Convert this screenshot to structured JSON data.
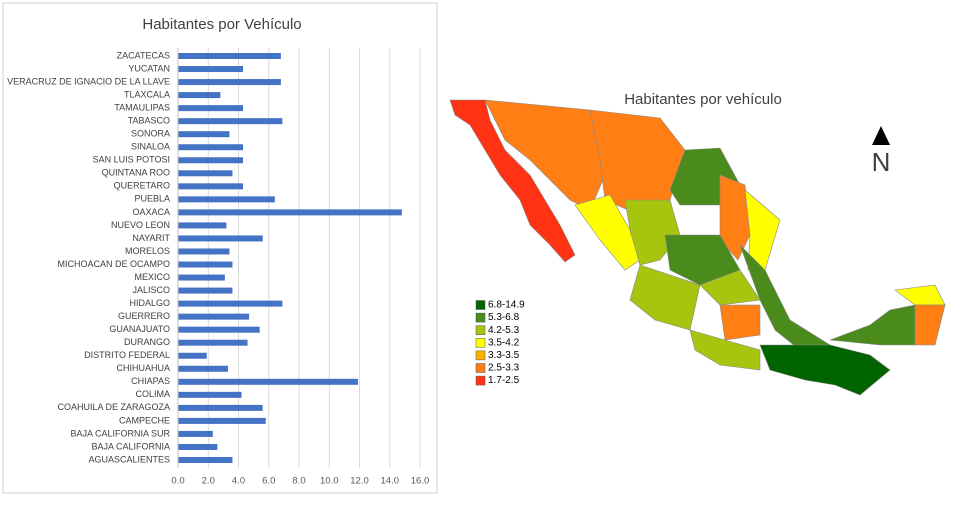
{
  "chart_data": {
    "type": "bar",
    "orientation": "horizontal",
    "title": "Habitantes por Vehículo",
    "categories": [
      "AGUASCALIENTES",
      "BAJA CALIFORNIA",
      "BAJA CALIFORNIA SUR",
      "CAMPECHE",
      "COAHUILA DE ZARAGOZA",
      "COLIMA",
      "CHIAPAS",
      "CHIHUAHUA",
      "DISTRITO FEDERAL",
      "DURANGO",
      "GUANAJUATO",
      "GUERRERO",
      "HIDALGO",
      "JALISCO",
      "MEXICO",
      "MICHOACAN DE OCAMPO",
      "MORELOS",
      "NAYARIT",
      "NUEVO LEON",
      "OAXACA",
      "PUEBLA",
      "QUERETARO",
      "QUINTANA ROO",
      "SAN LUIS POTOSI",
      "SINALOA",
      "SONORA",
      "TABASCO",
      "TAMAULIPAS",
      "TLAXCALA",
      "VERACRUZ DE IGNACIO DE LA LLAVE",
      "YUCATAN",
      "ZACATECAS"
    ],
    "values": [
      3.6,
      2.6,
      2.3,
      5.8,
      5.6,
      4.2,
      11.9,
      3.3,
      1.9,
      4.6,
      5.4,
      4.7,
      6.9,
      3.6,
      3.1,
      3.6,
      3.4,
      5.6,
      3.2,
      14.8,
      6.4,
      4.3,
      3.6,
      4.3,
      4.3,
      3.4,
      6.9,
      4.3,
      2.8,
      6.8,
      4.3,
      6.8
    ],
    "color": "#4472c4",
    "xlim": [
      0,
      16
    ],
    "xticks": [
      {
        "value": 0,
        "label": "0.0"
      },
      {
        "value": 2,
        "label": "2.0"
      },
      {
        "value": 4,
        "label": "4.0"
      },
      {
        "value": 6,
        "label": "6.0"
      },
      {
        "value": 8,
        "label": "8.0"
      },
      {
        "value": 10,
        "label": "10.0"
      },
      {
        "value": 12,
        "label": "12.0"
      },
      {
        "value": 14,
        "label": "14.0"
      },
      {
        "value": 16,
        "label": "16.0"
      }
    ],
    "grid": true
  },
  "map": {
    "title": "Habitantes por vehículo",
    "north": "N",
    "legend": [
      {
        "label": "6.8-14.9",
        "color": "#006400"
      },
      {
        "label": "5.3-6.8",
        "color": "#4b8b1c"
      },
      {
        "label": "4.2-5.3",
        "color": "#a7c40e"
      },
      {
        "label": "3.5-4.2",
        "color": "#ffff00"
      },
      {
        "label": "3.3-3.5",
        "color": "#ffb000"
      },
      {
        "label": "2.5-3.3",
        "color": "#ff7f15"
      },
      {
        "label": "1.7-2.5",
        "color": "#ff3314"
      }
    ]
  }
}
